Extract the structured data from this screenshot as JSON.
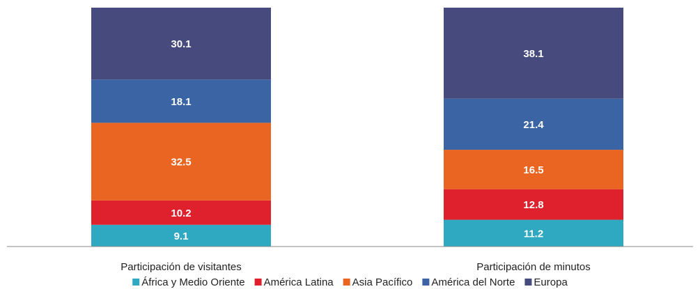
{
  "chart_data": {
    "type": "bar",
    "stacked": true,
    "percent_stacked": true,
    "categories": [
      "Participación de visitantes",
      "Participación de minutos"
    ],
    "series": [
      {
        "name": "África y Medio Oriente",
        "values": [
          9.1,
          11.2
        ],
        "color": "#2FA8C2"
      },
      {
        "name": "América Latina",
        "values": [
          10.2,
          12.8
        ],
        "color": "#DF212E"
      },
      {
        "name": "Asia Pacífico",
        "values": [
          32.5,
          16.5
        ],
        "color": "#EA6521"
      },
      {
        "name": "América del Norte",
        "values": [
          18.1,
          21.4
        ],
        "color": "#3A64A3"
      },
      {
        "name": "Europa",
        "values": [
          30.1,
          38.1
        ],
        "color": "#474A7C"
      }
    ],
    "ylim": [
      0,
      100
    ],
    "grid": false,
    "legend_position": "bottom",
    "title": "",
    "xlabel": "",
    "ylabel": ""
  }
}
